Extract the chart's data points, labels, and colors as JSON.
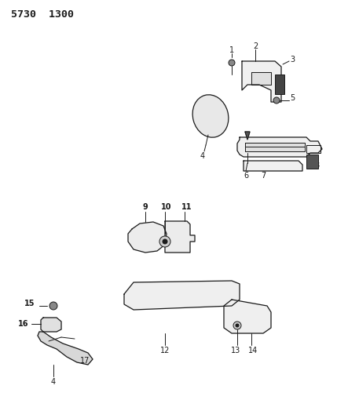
{
  "title": "5730  1300",
  "background_color": "#ffffff",
  "line_color": "#1a1a1a",
  "figsize": [
    4.29,
    5.33
  ],
  "dpi": 100
}
